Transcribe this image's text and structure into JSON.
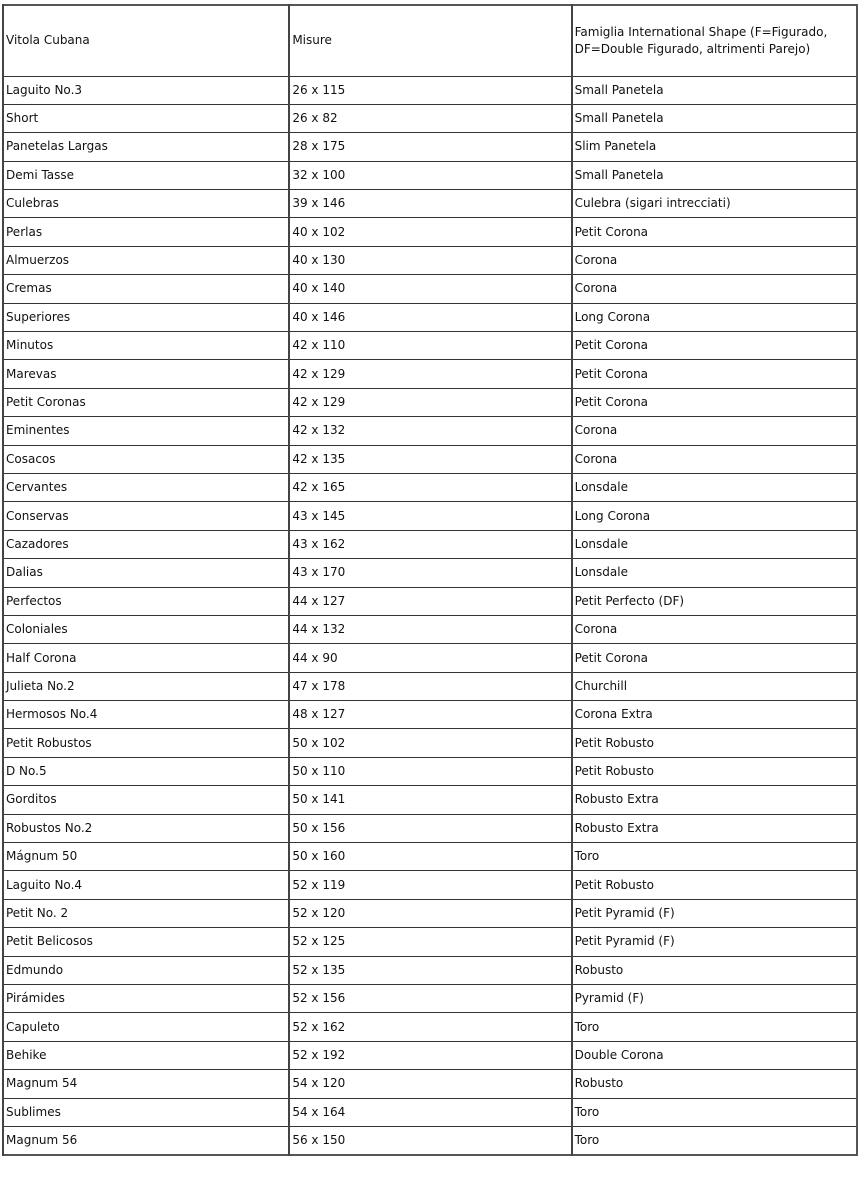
{
  "table": {
    "headers": [
      "Vitola Cubana",
      "Misure",
      "Famiglia International Shape (F=Figurado, DF=Double Figurado, altrimenti Parejo)"
    ],
    "rows": [
      [
        "Laguito No.3",
        "26 x 115",
        "Small Panetela"
      ],
      [
        "Short",
        "26 x 82",
        "Small Panetela"
      ],
      [
        "Panetelas Largas",
        "28 x 175",
        "Slim Panetela"
      ],
      [
        "Demi Tasse",
        "32 x 100",
        "Small Panetela"
      ],
      [
        "Culebras",
        "39 x 146",
        "Culebra (sigari intrecciati)"
      ],
      [
        "Perlas",
        "40 x 102",
        "Petit Corona"
      ],
      [
        "Almuerzos",
        "40 x 130",
        "Corona"
      ],
      [
        "Cremas",
        "40 x 140",
        "Corona"
      ],
      [
        "Superiores",
        "40 x 146",
        "Long Corona"
      ],
      [
        "Minutos",
        "42 x 110",
        "Petit Corona"
      ],
      [
        "Marevas",
        "42 x 129",
        "Petit Corona"
      ],
      [
        "Petit Coronas",
        "42 x 129",
        "Petit Corona"
      ],
      [
        "Eminentes",
        "42 x 132",
        "Corona"
      ],
      [
        "Cosacos",
        "42 x 135",
        "Corona"
      ],
      [
        "Cervantes",
        "42 x 165",
        "Lonsdale"
      ],
      [
        "Conservas",
        "43 x 145",
        "Long Corona"
      ],
      [
        "Cazadores",
        "43 x 162",
        "Lonsdale"
      ],
      [
        "Dalias",
        "43 x 170",
        "Lonsdale"
      ],
      [
        "Perfectos",
        "44 x 127",
        "Petit Perfecto (DF)"
      ],
      [
        "Coloniales",
        "44 x 132",
        "Corona"
      ],
      [
        "Half Corona",
        "44 x 90",
        "Petit Corona"
      ],
      [
        "Julieta No.2",
        "47 x 178",
        "Churchill"
      ],
      [
        "Hermosos No.4",
        "48 x 127",
        "Corona Extra"
      ],
      [
        "Petit Robustos",
        "50 x 102",
        "Petit Robusto"
      ],
      [
        "D No.5",
        "50 x 110",
        "Petit Robusto"
      ],
      [
        "Gorditos",
        "50 x 141",
        "Robusto Extra"
      ],
      [
        "Robustos No.2",
        "50 x 156",
        "Robusto Extra"
      ],
      [
        "Mágnum 50",
        "50 x 160",
        "Toro"
      ],
      [
        "Laguito No.4",
        "52 x 119",
        "Petit Robusto"
      ],
      [
        "Petit No. 2",
        "52 x 120",
        "Petit Pyramid (F)"
      ],
      [
        "Petit Belicosos",
        "52 x 125",
        "Petit Pyramid (F)"
      ],
      [
        "Edmundo",
        "52 x 135",
        "Robusto"
      ],
      [
        "Pirámides",
        "52 x 156",
        "Pyramid (F)"
      ],
      [
        "Capuleto",
        "52 x 162",
        "Toro"
      ],
      [
        "Behike",
        "52 x 192",
        "Double Corona"
      ],
      [
        "Magnum 54",
        "54 x 120",
        "Robusto"
      ],
      [
        "Sublimes",
        "54 x 164",
        "Toro"
      ],
      [
        "Magnum 56",
        "56 x 150",
        "Toro"
      ]
    ]
  }
}
